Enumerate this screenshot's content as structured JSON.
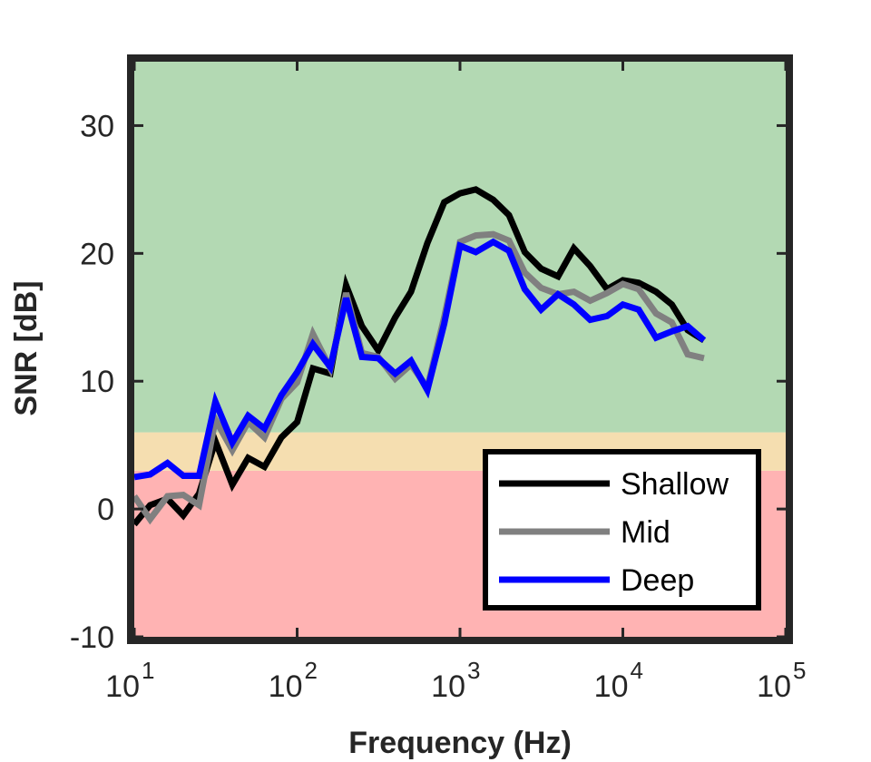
{
  "chart_data": {
    "type": "line",
    "xscale": "log",
    "xlim": [
      10,
      100000
    ],
    "ylim": [
      -10,
      35
    ],
    "xlabel": "Frequency (Hz)",
    "ylabel": "SNR [dB]",
    "xticks": [
      {
        "value": 10,
        "base": "10",
        "exp": "1"
      },
      {
        "value": 100,
        "base": "10",
        "exp": "2"
      },
      {
        "value": 1000,
        "base": "10",
        "exp": "3"
      },
      {
        "value": 10000,
        "base": "10",
        "exp": "4"
      },
      {
        "value": 100000,
        "base": "10",
        "exp": "5"
      }
    ],
    "yticks": [
      {
        "value": -10,
        "label": "-10"
      },
      {
        "value": 0,
        "label": "0"
      },
      {
        "value": 10,
        "label": "10"
      },
      {
        "value": 20,
        "label": "20"
      },
      {
        "value": 30,
        "label": "30"
      }
    ],
    "bands": [
      {
        "from": -10,
        "to": 3,
        "color": "#ffb3b3"
      },
      {
        "from": 3,
        "to": 6,
        "color": "#f5deb0"
      },
      {
        "from": 6,
        "to": 35,
        "color": "#b3d9b3"
      }
    ],
    "legend_position": "bottom-right",
    "series": [
      {
        "name": "Shallow",
        "color": "#000000",
        "x": [
          10,
          12.5,
          16,
          20,
          25,
          31.5,
          40,
          50,
          63,
          80,
          100,
          125,
          160,
          200,
          250,
          315,
          400,
          500,
          630,
          800,
          1000,
          1250,
          1600,
          2000,
          2500,
          3150,
          4000,
          5000,
          6300,
          8000,
          10000,
          12500,
          16000,
          20000,
          25000,
          31500
        ],
        "y": [
          -1.2,
          0.3,
          0.8,
          -0.5,
          1.2,
          5.3,
          1.9,
          4.0,
          3.3,
          5.6,
          6.8,
          11.0,
          10.6,
          17.5,
          14.3,
          12.4,
          15.0,
          17.0,
          20.8,
          24.0,
          24.7,
          25.0,
          24.2,
          23.0,
          20.1,
          18.8,
          18.2,
          20.4,
          19.0,
          17.2,
          17.9,
          17.7,
          17.0,
          16.0,
          14.0,
          13.2
        ]
      },
      {
        "name": "Mid",
        "color": "#808080",
        "x": [
          10,
          12.5,
          16,
          20,
          25,
          31.5,
          40,
          50,
          63,
          80,
          100,
          125,
          160,
          200,
          250,
          315,
          400,
          500,
          630,
          800,
          1000,
          1250,
          1600,
          2000,
          2500,
          3150,
          4000,
          5000,
          6300,
          8000,
          10000,
          12500,
          16000,
          20000,
          25000,
          31500
        ],
        "y": [
          1.0,
          -0.8,
          1.0,
          1.1,
          0.3,
          7.0,
          4.6,
          6.8,
          5.6,
          8.6,
          9.9,
          13.7,
          11.0,
          16.9,
          12.2,
          11.9,
          10.2,
          11.3,
          9.5,
          15.0,
          20.9,
          21.4,
          21.5,
          21.0,
          18.5,
          17.3,
          16.8,
          17.0,
          16.3,
          16.9,
          17.6,
          17.2,
          15.3,
          14.6,
          12.1,
          11.8
        ]
      },
      {
        "name": "Deep",
        "color": "#0000ff",
        "x": [
          10,
          12.5,
          16,
          20,
          25,
          31.5,
          40,
          50,
          63,
          80,
          100,
          125,
          160,
          200,
          250,
          315,
          400,
          500,
          630,
          800,
          1000,
          1250,
          1600,
          2000,
          2500,
          3150,
          4000,
          5000,
          6300,
          8000,
          10000,
          12500,
          16000,
          20000,
          25000,
          31500
        ],
        "y": [
          2.5,
          2.7,
          3.6,
          2.6,
          2.6,
          8.4,
          5.2,
          7.3,
          6.3,
          8.9,
          10.7,
          12.9,
          11.1,
          16.5,
          11.9,
          11.8,
          10.6,
          11.6,
          9.3,
          14.5,
          20.6,
          20.1,
          20.9,
          20.2,
          17.2,
          15.6,
          16.8,
          16.0,
          14.8,
          15.1,
          16.0,
          15.6,
          13.4,
          13.9,
          14.3,
          13.2
        ]
      }
    ]
  }
}
